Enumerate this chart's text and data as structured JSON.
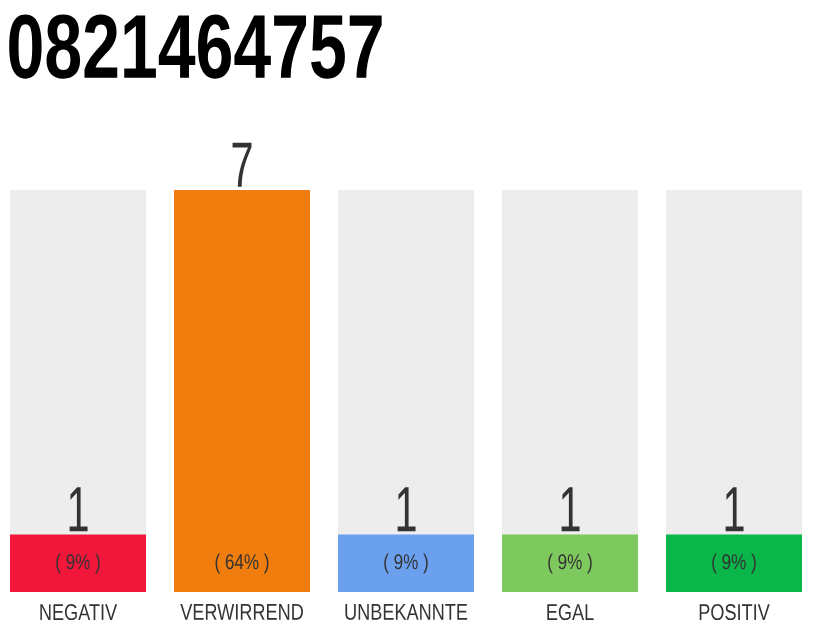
{
  "chart_data": {
    "type": "bar",
    "title": "0821464757",
    "categories": [
      "NEGATIV",
      "VERWIRREND",
      "UNBEKANNTE",
      "EGAL",
      "POSITIV"
    ],
    "values": [
      1,
      7,
      1,
      1,
      1
    ],
    "colors": [
      "#f0173a",
      "#f07d0d",
      "#6aa0ee",
      "#7dc95e",
      "#0ab54a"
    ],
    "value_labels": [
      "1",
      "7",
      "1",
      "1",
      "1"
    ],
    "annotations": [
      {
        "text": "( 9% )",
        "x": "NEGATIV",
        "y": 0
      },
      {
        "text": "( 64% )",
        "x": "VERWIRREND",
        "y": 0
      },
      {
        "text": "( 9% )",
        "x": "UNBEKANNTE",
        "y": 0
      },
      {
        "text": "( 9% )",
        "x": "EGAL",
        "y": 0
      },
      {
        "text": "( 9% )",
        "x": "POSITIV",
        "y": 0
      }
    ]
  }
}
